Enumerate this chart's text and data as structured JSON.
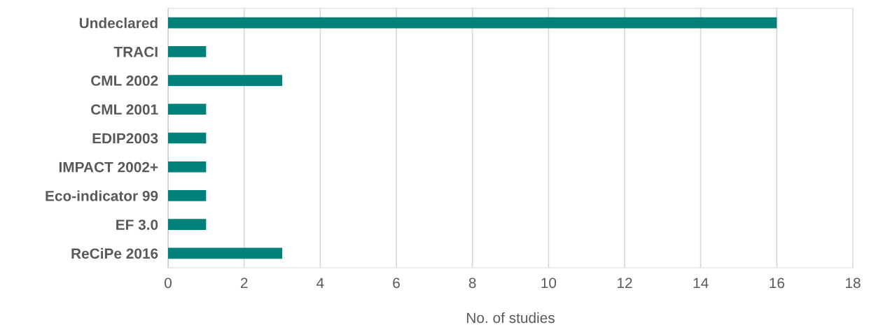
{
  "chart_data": {
    "type": "bar",
    "orientation": "horizontal",
    "xlabel": "No. of studies",
    "categories": [
      "Undeclared",
      "TRACI",
      "CML 2002",
      "CML 2001",
      "EDIP2003",
      "IMPACT 2002+",
      "Eco-indicator 99",
      "EF 3.0",
      "ReCiPe 2016"
    ],
    "values": [
      16,
      1,
      3,
      1,
      1,
      1,
      1,
      1,
      3
    ],
    "color": "#00827a",
    "xlim": [
      0,
      18
    ],
    "xticks": [
      0,
      2,
      4,
      6,
      8,
      10,
      12,
      14,
      16,
      18
    ],
    "grid": "x"
  }
}
